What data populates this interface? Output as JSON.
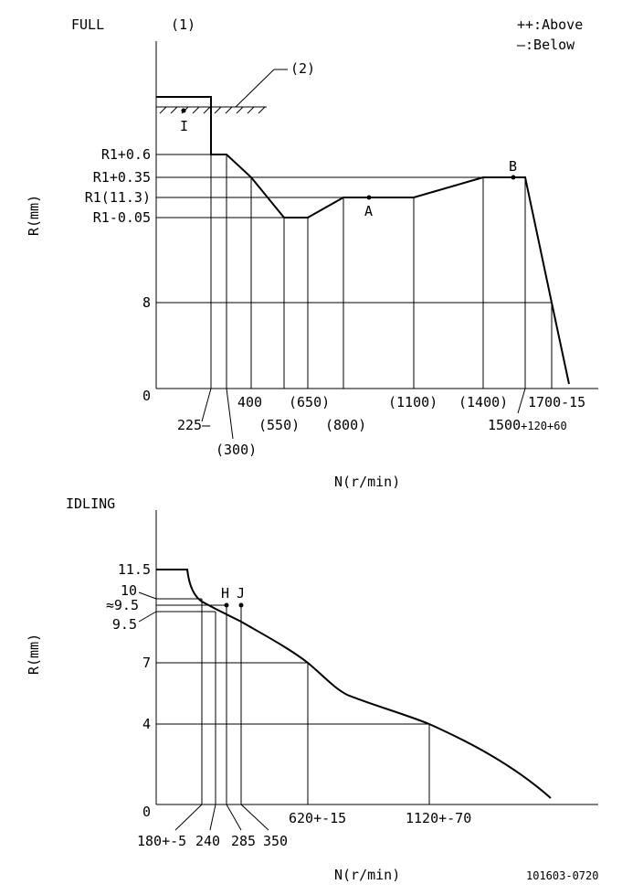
{
  "legend": {
    "above": "++:Above",
    "below": "—:Below"
  },
  "full": {
    "title": "FULL",
    "note1": "(1)",
    "note2": "(2)",
    "y_axis_label": "R(mm)",
    "x_axis_label": "N(r/min)",
    "y_ticks": {
      "r1_plus_06": "R1+0.6",
      "r1_plus_035": "R1+0.35",
      "r1": "R1(11.3)",
      "r1_minus_005": "R1-0.05",
      "eight": "8",
      "zero": "0"
    },
    "x_ticks": {
      "t225": "225—",
      "t300": "(300)",
      "t400": "400",
      "t550": "(550)",
      "t650": "(650)",
      "t800": "(800)",
      "t1100": "(1100)",
      "t1400": "(1400)",
      "t1700": "1700-15",
      "t1500_a": "1500",
      "t1500_b": "+120+60"
    },
    "points": {
      "i": "I",
      "a": "A",
      "b": "B"
    }
  },
  "idling": {
    "title": "IDLING",
    "y_axis_label": "R(mm)",
    "x_axis_label": "N(r/min)",
    "y_ticks": {
      "v115": "11.5",
      "v10": "10",
      "v95_approx": "≈9.5",
      "v95": "9.5",
      "v7": "7",
      "v4": "4",
      "zero": "0"
    },
    "x_ticks": {
      "t180": "180+-5",
      "t240": "240",
      "t285": "285",
      "t350": "350",
      "t620": "620+-15",
      "t1120": "1120+-70"
    },
    "points": {
      "h": "H",
      "j": "J"
    }
  },
  "doc_id": "101603-0720"
}
